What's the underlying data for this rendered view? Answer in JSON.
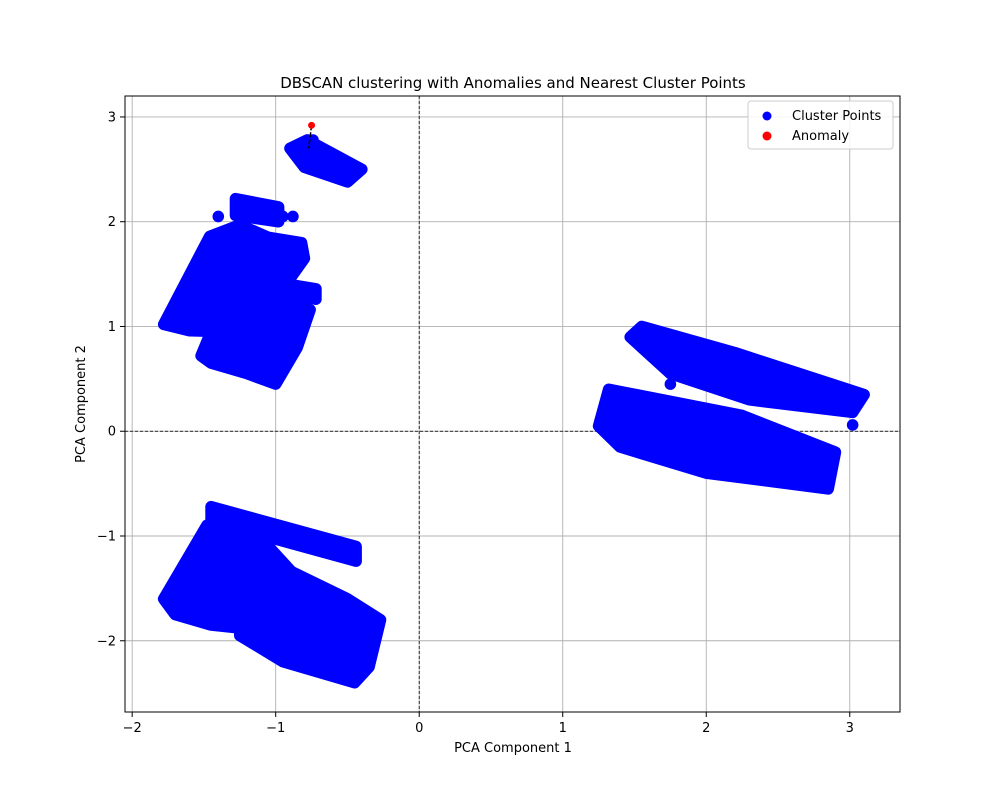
{
  "chart_data": {
    "type": "scatter",
    "title": "DBSCAN clustering with Anomalies and Nearest Cluster Points",
    "xlabel": "PCA Component 1",
    "ylabel": "PCA Component 2",
    "xlim": [
      -2.05,
      3.35
    ],
    "ylim": [
      -2.68,
      3.2
    ],
    "xticks": [
      -2,
      -1,
      0,
      1,
      2,
      3
    ],
    "yticks": [
      -2,
      -1,
      0,
      1,
      2,
      3
    ],
    "xtick_labels": [
      "−2",
      "−1",
      "0",
      "1",
      "2",
      "3"
    ],
    "ytick_labels": [
      "−2",
      "−1",
      "0",
      "1",
      "2",
      "3"
    ],
    "grid": true,
    "reference_lines": {
      "x": 0,
      "y": 0,
      "style": "dashed"
    },
    "legend": {
      "position": "top-right",
      "entries": [
        {
          "label": "Cluster Points",
          "color": "#0000ff"
        },
        {
          "label": "Anomaly",
          "color": "#ff0000"
        }
      ]
    },
    "series": [
      {
        "name": "Cluster Points",
        "color": "#0000ff",
        "regions": [
          {
            "polygon": [
              [
                -1.78,
                1.02
              ],
              [
                -1.46,
                1.86
              ],
              [
                -1.25,
                1.97
              ],
              [
                -1.05,
                1.85
              ],
              [
                -0.82,
                1.8
              ],
              [
                -0.8,
                1.65
              ],
              [
                -0.93,
                1.4
              ],
              [
                -1.0,
                1.2
              ],
              [
                -1.08,
                0.98
              ],
              [
                -1.33,
                0.95
              ],
              [
                -1.6,
                0.96
              ]
            ]
          },
          {
            "polygon": [
              [
                -1.52,
                0.72
              ],
              [
                -1.42,
                1.05
              ],
              [
                -1.2,
                1.22
              ],
              [
                -0.95,
                1.25
              ],
              [
                -0.76,
                1.16
              ],
              [
                -0.85,
                0.8
              ],
              [
                -1.0,
                0.45
              ],
              [
                -1.2,
                0.55
              ],
              [
                -1.45,
                0.65
              ]
            ]
          },
          {
            "polygon": [
              [
                -0.9,
                1.4
              ],
              [
                -0.72,
                1.36
              ],
              [
                -0.72,
                1.26
              ],
              [
                -0.9,
                1.32
              ]
            ]
          },
          {
            "polygon": [
              [
                -1.28,
                2.22
              ],
              [
                -0.98,
                2.14
              ],
              [
                -0.98,
                2.0
              ],
              [
                -1.28,
                2.06
              ]
            ]
          },
          {
            "polygon": [
              [
                -0.9,
                2.7
              ],
              [
                -0.78,
                2.78
              ],
              [
                -0.4,
                2.5
              ],
              [
                -0.5,
                2.38
              ],
              [
                -0.8,
                2.52
              ]
            ]
          },
          {
            "polygon": [
              [
                -1.78,
                -1.6
              ],
              [
                -1.48,
                -0.9
              ],
              [
                -1.25,
                -0.95
              ],
              [
                -1.05,
                -1.1
              ],
              [
                -0.85,
                -1.4
              ],
              [
                -1.1,
                -1.9
              ],
              [
                -1.45,
                -1.85
              ],
              [
                -1.7,
                -1.75
              ]
            ]
          },
          {
            "polygon": [
              [
                -1.45,
                -0.72
              ],
              [
                -0.44,
                -1.1
              ],
              [
                -0.44,
                -1.24
              ],
              [
                -1.45,
                -0.86
              ]
            ]
          },
          {
            "polygon": [
              [
                -1.25,
                -1.5
              ],
              [
                -1.1,
                -1.2
              ],
              [
                -0.5,
                -1.6
              ],
              [
                -0.27,
                -1.8
              ],
              [
                -0.35,
                -2.25
              ],
              [
                -0.45,
                -2.4
              ],
              [
                -0.95,
                -2.2
              ],
              [
                -1.25,
                -1.95
              ]
            ]
          },
          {
            "polygon": [
              [
                1.25,
                0.05
              ],
              [
                1.32,
                0.4
              ],
              [
                2.25,
                0.15
              ],
              [
                2.9,
                -0.2
              ],
              [
                2.85,
                -0.55
              ],
              [
                2.0,
                -0.4
              ],
              [
                1.4,
                -0.15
              ]
            ]
          },
          {
            "polygon": [
              [
                1.47,
                0.9
              ],
              [
                1.55,
                1.0
              ],
              [
                2.2,
                0.75
              ],
              [
                3.1,
                0.35
              ],
              [
                3.02,
                0.18
              ],
              [
                2.3,
                0.3
              ],
              [
                1.75,
                0.55
              ]
            ]
          }
        ],
        "outliers": [
          [
            -1.4,
            2.05
          ],
          [
            -0.88,
            2.05
          ],
          [
            -0.95,
            2.05
          ],
          [
            3.02,
            0.06
          ],
          [
            -0.76,
            2.7
          ],
          [
            -0.74,
            2.78
          ],
          [
            1.5,
            0.88
          ],
          [
            1.75,
            0.45
          ],
          [
            2.55,
            0.35
          ],
          [
            -0.38,
            -1.85
          ]
        ]
      },
      {
        "name": "Anomaly",
        "color": "#ff0000",
        "points": [
          [
            -0.75,
            2.92
          ]
        ]
      }
    ],
    "nearest_links": [
      {
        "from": [
          -0.75,
          2.92
        ],
        "to": [
          -0.77,
          2.7
        ]
      }
    ]
  }
}
